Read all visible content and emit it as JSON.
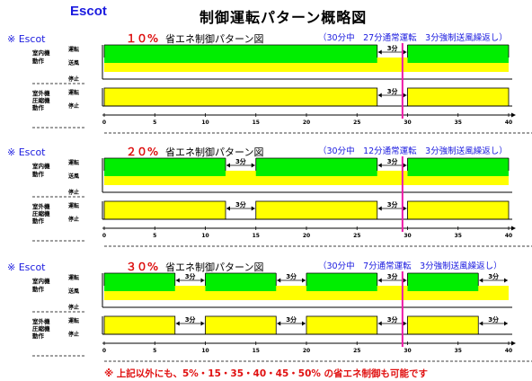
{
  "header": {
    "brand": "Escot",
    "title": "制御運転パターン概略図"
  },
  "colors": {
    "run": "#00ee00",
    "blow": "#ffff00",
    "marker": "#ee1aa8",
    "pct": "#dd1111",
    "note": "#1a1adf",
    "label": "#000000"
  },
  "icon_names": [
    "double-arrow-icon"
  ],
  "axis_ticks": [
    "0",
    "5",
    "10",
    "15",
    "20",
    "25",
    "30",
    "35",
    "40"
  ],
  "axis_range": [
    0,
    40
  ],
  "marker_minute": 29.5,
  "panels": [
    {
      "tag": "※ Escot",
      "pct": "１０%",
      "title": "省エネ制御パターン図",
      "note": "（30分中　27分通常運転　3分強制送風繰返し）",
      "row1": {
        "label": "室内機動作",
        "levels": [
          "運転",
          "送風",
          "停止"
        ]
      },
      "row2": {
        "label": "室外機圧縮機動作",
        "levels": [
          "運転",
          "停止"
        ]
      },
      "gaps": [
        [
          27,
          30
        ]
      ],
      "gap_label": "3分"
    },
    {
      "tag": "※ Escot",
      "pct": "２０%",
      "title": "省エネ制御パターン図",
      "note": "（30分中　12分通常運転　3分強制送風繰返し）",
      "row1": {
        "label": "室内機動作",
        "levels": [
          "運転",
          "送風",
          "停止"
        ]
      },
      "row2": {
        "label": "室外機圧縮機動作",
        "levels": [
          "運転",
          "停止"
        ]
      },
      "gaps": [
        [
          12,
          15
        ],
        [
          27,
          30
        ]
      ],
      "gap_label": "3分"
    },
    {
      "tag": "※ Escot",
      "pct": "３０%",
      "title": "省エネ制御パターン図",
      "note": "（30分中　7分通常運転　3分強制送風繰返し）",
      "row1": {
        "label": "室内機動作",
        "levels": [
          "運転",
          "送風",
          "停止"
        ]
      },
      "row2": {
        "label": "室外機圧縮機動作",
        "levels": [
          "運転",
          "停止"
        ]
      },
      "gaps": [
        [
          7,
          10
        ],
        [
          17,
          20
        ],
        [
          27,
          30
        ],
        [
          37,
          40
        ]
      ],
      "gap_label": "3分"
    }
  ],
  "footnote": "※ 上記以外にも、5%・15・35・40・45・50% の省エネ制御も可能です"
}
